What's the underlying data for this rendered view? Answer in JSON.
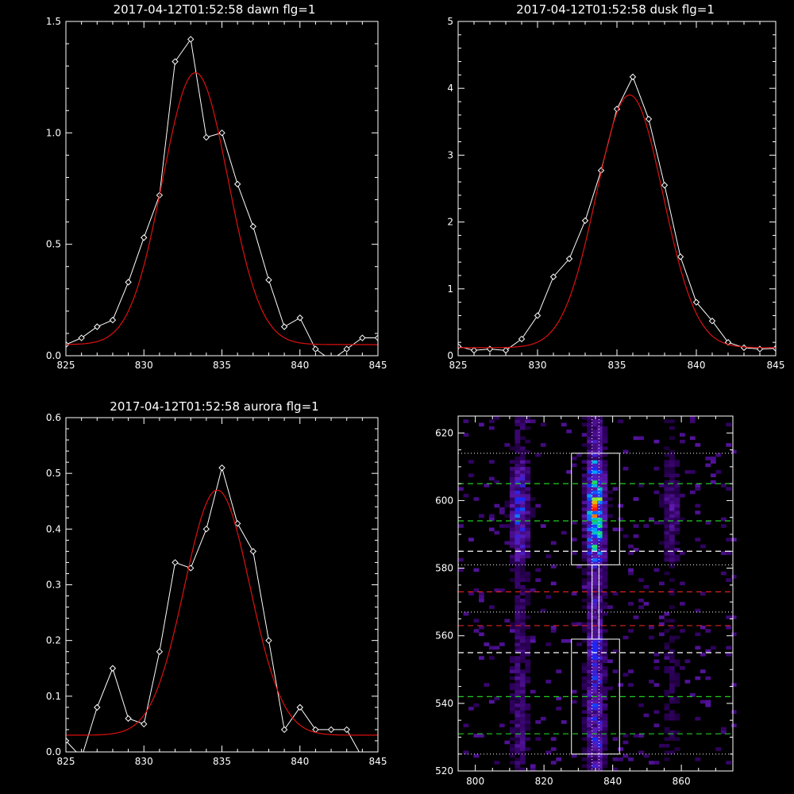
{
  "colors": {
    "background": "#000000",
    "axes": "#ffffff",
    "data_line": "#ffffff",
    "fit_line": "#dd1111",
    "green_dash": "#22cc22",
    "red_dash": "#dd2222",
    "white_dash": "#ffffff",
    "markers": "diamond"
  },
  "chart_data": [
    {
      "id": "dawn",
      "type": "line",
      "title": "2017-04-12T01:52:58 dawn flg=1",
      "xlabel": "",
      "ylabel": "",
      "xlim": [
        825,
        845
      ],
      "ylim": [
        0,
        1.5
      ],
      "xticks": [
        "825",
        "830",
        "835",
        "840",
        "845"
      ],
      "yticks": [
        "0.0",
        "0.5",
        "1.0",
        "1.5"
      ],
      "series": [
        {
          "style": "data",
          "x": [
            825,
            826,
            827,
            828,
            829,
            830,
            831,
            832,
            833,
            834,
            835,
            836,
            837,
            838,
            839,
            840,
            841,
            842,
            843,
            844,
            845
          ],
          "y": [
            0.05,
            0.08,
            0.13,
            0.16,
            0.33,
            0.53,
            0.72,
            1.32,
            1.42,
            0.98,
            1.0,
            0.77,
            0.58,
            0.34,
            0.13,
            0.17,
            0.03,
            -0.02,
            0.03,
            0.08,
            0.08
          ]
        },
        {
          "style": "fit",
          "gaussian": {
            "amp": 1.22,
            "center": 833.3,
            "sigma": 2.1,
            "offset": 0.05
          }
        }
      ]
    },
    {
      "id": "dusk",
      "type": "line",
      "title": "2017-04-12T01:52:58 dusk flg=1",
      "xlabel": "",
      "ylabel": "",
      "xlim": [
        825,
        845
      ],
      "ylim": [
        0,
        5
      ],
      "xticks": [
        "825",
        "830",
        "835",
        "840",
        "845"
      ],
      "yticks": [
        "0",
        "1",
        "2",
        "3",
        "4",
        "5"
      ],
      "series": [
        {
          "style": "data",
          "x": [
            825,
            826,
            827,
            828,
            829,
            830,
            831,
            832,
            833,
            834,
            835,
            836,
            837,
            838,
            839,
            840,
            841,
            842,
            843,
            844,
            845
          ],
          "y": [
            0.14,
            0.08,
            0.1,
            0.08,
            0.25,
            0.6,
            1.18,
            1.45,
            2.02,
            2.77,
            3.69,
            4.17,
            3.54,
            2.55,
            1.48,
            0.8,
            0.52,
            0.2,
            0.12,
            0.1,
            0.11
          ]
        },
        {
          "style": "fit",
          "gaussian": {
            "amp": 3.78,
            "center": 835.8,
            "sigma": 2.1,
            "offset": 0.12
          }
        }
      ]
    },
    {
      "id": "aurora",
      "type": "line",
      "title": "2017-04-12T01:52:58 aurora flg=1",
      "xlabel": "",
      "ylabel": "",
      "xlim": [
        825,
        845
      ],
      "ylim": [
        0,
        0.6
      ],
      "xticks": [
        "825",
        "830",
        "835",
        "840",
        "845"
      ],
      "yticks": [
        "0.0",
        "0.1",
        "0.2",
        "0.3",
        "0.4",
        "0.5",
        "0.6"
      ],
      "series": [
        {
          "style": "data",
          "x": [
            825,
            826,
            827,
            828,
            829,
            830,
            831,
            832,
            833,
            834,
            835,
            836,
            837,
            838,
            839,
            840,
            841,
            842,
            843,
            844,
            845
          ],
          "y": [
            0.02,
            -0.01,
            0.08,
            0.15,
            0.06,
            0.05,
            0.18,
            0.34,
            0.33,
            0.4,
            0.51,
            0.41,
            0.36,
            0.2,
            0.04,
            0.08,
            0.04,
            0.04,
            0.04,
            -0.01,
            -0.01
          ]
        },
        {
          "style": "fit",
          "gaussian": {
            "amp": 0.44,
            "center": 834.7,
            "sigma": 2.1,
            "offset": 0.03
          }
        }
      ]
    },
    {
      "id": "image",
      "type": "heatmap",
      "title": "",
      "xlabel": "",
      "ylabel": "",
      "xlim": [
        795,
        875
      ],
      "ylim": [
        520,
        625
      ],
      "xticks": [
        "800",
        "820",
        "840",
        "860"
      ],
      "yticks": [
        "520",
        "540",
        "560",
        "580",
        "600",
        "620"
      ],
      "bright_columns": [
        {
          "center": 813,
          "halfwidth": 3.5,
          "strength": 0.45
        },
        {
          "center": 835,
          "halfwidth": 3.5,
          "strength": 0.85
        },
        {
          "center": 857,
          "halfwidth": 3.5,
          "strength": 0.25
        }
      ],
      "boxes": [
        {
          "x": [
            828,
            842
          ],
          "y": [
            581,
            614
          ]
        },
        {
          "x": [
            828,
            842
          ],
          "y": [
            525,
            559
          ]
        },
        {
          "x": [
            834,
            836
          ],
          "y": [
            559,
            581
          ]
        }
      ],
      "dotted_lines_y": [
        614,
        581,
        567,
        525
      ],
      "dotted_lines_x": [
        834,
        836
      ],
      "dashed_lines": [
        {
          "y": 605,
          "color": "green"
        },
        {
          "y": 594,
          "color": "green"
        },
        {
          "y": 585,
          "color": "white"
        },
        {
          "y": 573,
          "color": "red"
        },
        {
          "y": 563,
          "color": "red"
        },
        {
          "y": 555,
          "color": "white"
        },
        {
          "y": 542,
          "color": "green"
        },
        {
          "y": 531,
          "color": "green"
        }
      ]
    }
  ]
}
